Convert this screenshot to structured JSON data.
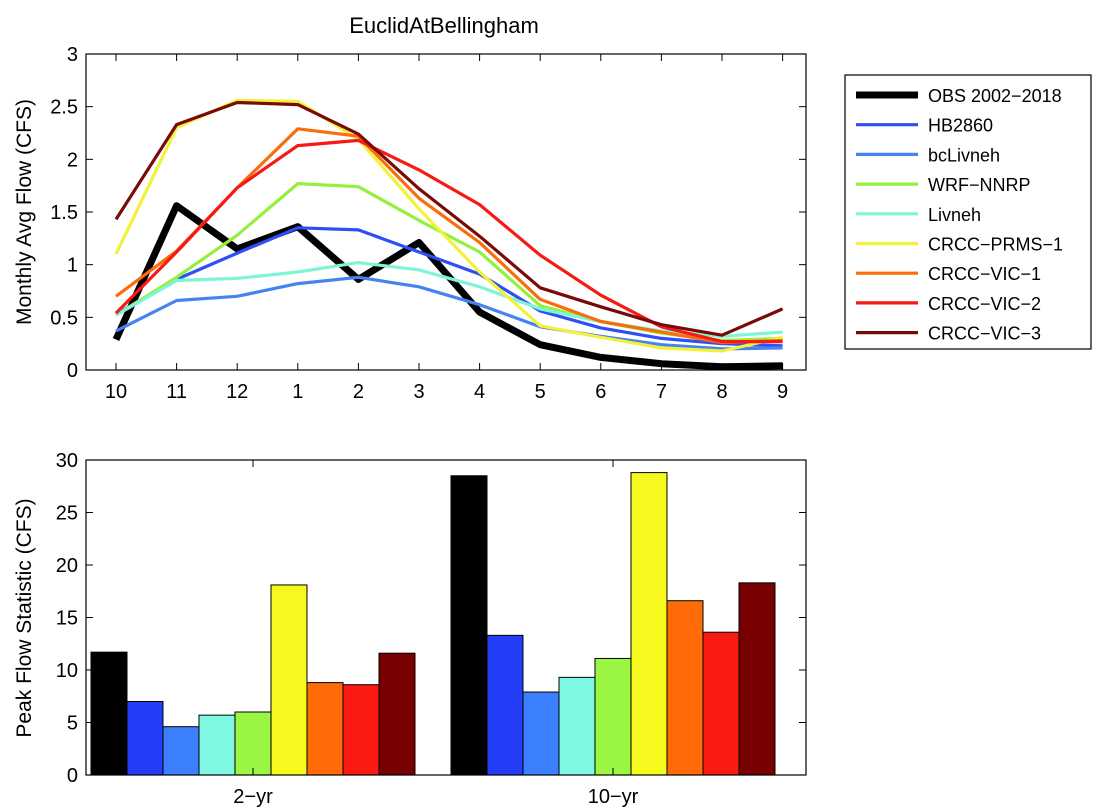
{
  "chart_data": [
    {
      "type": "line",
      "title": "EuclidAtBellingham",
      "xlabel": "",
      "ylabel": "Monthly Avg Flow (CFS)",
      "categories": [
        "10",
        "11",
        "12",
        "1",
        "2",
        "3",
        "4",
        "5",
        "6",
        "7",
        "8",
        "9"
      ],
      "ylim": [
        0,
        3
      ],
      "yticks": [
        "0",
        "0.5",
        "1",
        "1.5",
        "2",
        "2.5",
        "3"
      ],
      "legend_position": "outside-right",
      "series": [
        {
          "name": "OBS 2002−2018",
          "color": "#000000",
          "values": [
            0.29,
            1.56,
            1.15,
            1.36,
            0.86,
            1.21,
            0.55,
            0.24,
            0.12,
            0.06,
            0.03,
            0.04
          ]
        },
        {
          "name": "HB2860",
          "color": "#2e4ff5",
          "values": [
            0.53,
            0.86,
            1.11,
            1.35,
            1.33,
            1.12,
            0.91,
            0.56,
            0.4,
            0.3,
            0.25,
            0.23
          ]
        },
        {
          "name": "bcLivneh",
          "color": "#4683f0",
          "values": [
            0.37,
            0.66,
            0.7,
            0.82,
            0.88,
            0.79,
            0.62,
            0.41,
            0.32,
            0.24,
            0.2,
            0.21
          ]
        },
        {
          "name": "WRF−NNRP",
          "color": "#94f03c",
          "values": [
            0.52,
            0.88,
            1.28,
            1.77,
            1.74,
            1.42,
            1.12,
            0.61,
            0.46,
            0.35,
            0.28,
            0.3
          ]
        },
        {
          "name": "Livneh",
          "color": "#7ff5d8",
          "values": [
            0.52,
            0.85,
            0.87,
            0.93,
            1.02,
            0.95,
            0.79,
            0.58,
            0.46,
            0.37,
            0.32,
            0.36
          ]
        },
        {
          "name": "CRCC−PRMS−1",
          "color": "#f2f23a",
          "values": [
            1.1,
            2.3,
            2.56,
            2.55,
            2.19,
            1.53,
            0.93,
            0.42,
            0.31,
            0.21,
            0.18,
            0.31
          ]
        },
        {
          "name": "CRCC−VIC−1",
          "color": "#fa6c0c",
          "values": [
            0.7,
            1.13,
            1.73,
            2.29,
            2.22,
            1.63,
            1.21,
            0.67,
            0.46,
            0.36,
            0.26,
            0.28
          ]
        },
        {
          "name": "CRCC−VIC−2",
          "color": "#f51a14",
          "values": [
            0.54,
            1.12,
            1.73,
            2.13,
            2.18,
            1.9,
            1.57,
            1.09,
            0.71,
            0.41,
            0.27,
            0.27
          ]
        },
        {
          "name": "CRCC−VIC−3",
          "color": "#790a08",
          "values": [
            1.43,
            2.33,
            2.54,
            2.52,
            2.24,
            1.72,
            1.27,
            0.78,
            0.6,
            0.43,
            0.33,
            0.58
          ]
        }
      ]
    },
    {
      "type": "bar",
      "title": "",
      "xlabel": "",
      "ylabel": "Peak Flow Statistic (CFS)",
      "categories": [
        "2−yr",
        "10−yr"
      ],
      "ylim": [
        0,
        30
      ],
      "yticks": [
        "0",
        "5",
        "10",
        "15",
        "20",
        "25",
        "30"
      ],
      "series": [
        {
          "color": "#000000",
          "values": [
            11.7,
            28.5
          ]
        },
        {
          "color": "#233ef6",
          "values": [
            7.0,
            13.3
          ]
        },
        {
          "color": "#3c80ff",
          "values": [
            4.6,
            7.9
          ]
        },
        {
          "color": "#7ff8e2",
          "values": [
            5.7,
            9.3
          ]
        },
        {
          "color": "#9af643",
          "values": [
            6.0,
            11.1
          ]
        },
        {
          "color": "#f7f81d",
          "values": [
            18.1,
            28.8
          ]
        },
        {
          "color": "#ff6b06",
          "values": [
            8.8,
            16.6
          ]
        },
        {
          "color": "#fc1b10",
          "values": [
            8.6,
            13.6
          ]
        },
        {
          "color": "#790000",
          "values": [
            11.6,
            18.3
          ]
        }
      ]
    }
  ]
}
